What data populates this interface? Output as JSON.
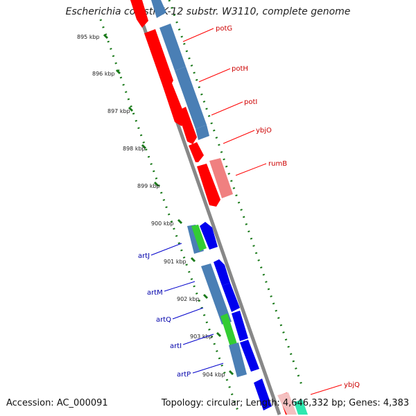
{
  "title": "Escherichia coli str. K-12 substr. W3110, complete genome",
  "footer": {
    "accession": "Accession: AC_000091",
    "topology": "Topology: circular; Length: 4,646,332 bp; Genes: 4,383"
  },
  "colors": {
    "red": "#ff0000",
    "pink": "#f08080",
    "blue": "#0000ee",
    "steel": "#4a7fb5",
    "green": "#33cc33",
    "teal": "#2ee8b0",
    "tick": "#1a7a1a",
    "backbone": "#888888"
  },
  "ticks": [
    "895 kbp",
    "896 kbp",
    "897 kbp",
    "898 kbp",
    "899 kbp",
    "900 kbp",
    "901 kbp",
    "902 kbp",
    "903 kbp",
    "904 kbp"
  ],
  "genes_top": [
    "potG",
    "potH",
    "potI",
    "ybjO",
    "rumB"
  ],
  "genes_bottom_right": [
    "ybjQ"
  ],
  "genes_left": [
    "artJ",
    "artM",
    "artQ",
    "artI",
    "artP"
  ]
}
